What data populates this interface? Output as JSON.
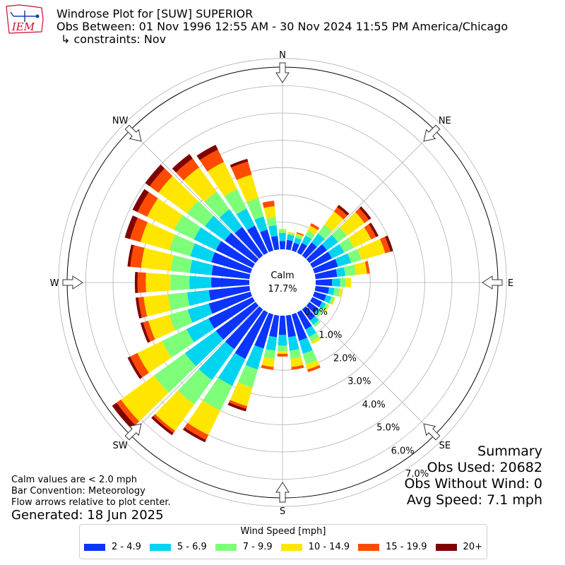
{
  "header": {
    "line1": "Windrose Plot for [SUW] SUPERIOR",
    "line2": "Obs Between: 01 Nov 1996 12:55 AM - 30 Nov 2024 11:55 PM America/Chicago",
    "line3": "↳ constraints: Nov",
    "logo_text": "IEM"
  },
  "notes": {
    "calm_note": "Calm values are < 2.0 mph",
    "bar_convention": "Bar Convention: Meteorology",
    "flow_note": "Flow arrows relative to plot center.",
    "generated": "Generated: 18 Jun 2025"
  },
  "summary": {
    "title": "Summary",
    "obs_used": "Obs Used: 20682",
    "obs_without_wind": "Obs Without Wind: 0",
    "avg_speed": "Avg Speed: 7.1 mph"
  },
  "chart_data": {
    "type": "windrose",
    "title": "Windrose Plot for [SUW] SUPERIOR",
    "calm_label": "Calm",
    "calm_value": "17.7%",
    "calm_percent": 17.7,
    "directions": [
      "N",
      "NE",
      "E",
      "SE",
      "S",
      "SW",
      "W",
      "NW"
    ],
    "radial_ticks": [
      "0.0%",
      "1.0%",
      "2.0%",
      "3.0%",
      "4.0%",
      "5.0%",
      "6.0%",
      "7.0%"
    ],
    "radial_range": [
      0,
      8
    ],
    "legend_title": "Wind Speed [mph]",
    "speed_bins": [
      "2 - 4.9",
      "5 - 6.9",
      "7 - 9.9",
      "10 - 14.9",
      "15 - 19.9",
      "20+"
    ],
    "colors": [
      "#0b34ff",
      "#00d4f0",
      "#7dff7a",
      "#ffe600",
      "#ff4b00",
      "#800000"
    ],
    "sector_width_deg": 10,
    "sector_directions_deg": [
      0,
      10,
      20,
      30,
      40,
      50,
      60,
      70,
      80,
      90,
      100,
      110,
      120,
      130,
      140,
      150,
      160,
      170,
      180,
      190,
      200,
      210,
      220,
      230,
      240,
      250,
      260,
      270,
      280,
      290,
      300,
      310,
      320,
      330,
      340,
      350
    ],
    "cumulative_percent": [
      [
        0.3,
        0.6,
        0.7,
        0.75,
        0.75,
        0.75
      ],
      [
        0.35,
        0.55,
        0.6,
        0.65,
        0.65,
        0.65
      ],
      [
        0.3,
        0.5,
        0.6,
        0.65,
        0.7,
        0.7
      ],
      [
        0.4,
        0.7,
        0.9,
        1.1,
        1.2,
        1.2
      ],
      [
        0.6,
        1.0,
        1.4,
        2.0,
        2.2,
        2.3
      ],
      [
        0.8,
        1.3,
        1.7,
        2.5,
        2.7,
        2.8
      ],
      [
        0.8,
        1.3,
        1.7,
        2.4,
        2.6,
        2.7
      ],
      [
        0.9,
        1.4,
        1.8,
        2.7,
        2.9,
        3.0
      ],
      [
        0.8,
        1.1,
        1.5,
        1.9,
        2.0,
        2.0
      ],
      [
        0.6,
        0.9,
        1.1,
        1.3,
        1.3,
        1.3
      ],
      [
        0.5,
        0.7,
        0.9,
        1.0,
        1.0,
        1.0
      ],
      [
        0.45,
        0.65,
        0.75,
        0.8,
        0.8,
        0.8
      ],
      [
        0.4,
        0.55,
        0.65,
        0.7,
        0.7,
        0.7
      ],
      [
        0.4,
        0.5,
        0.6,
        0.6,
        0.6,
        0.6
      ],
      [
        0.5,
        0.7,
        0.8,
        0.8,
        0.8,
        0.8
      ],
      [
        0.7,
        1.0,
        1.2,
        1.3,
        1.3,
        1.3
      ],
      [
        1.0,
        1.5,
        1.9,
        2.1,
        2.2,
        2.2
      ],
      [
        0.8,
        1.3,
        1.6,
        1.9,
        2.0,
        2.0
      ],
      [
        0.7,
        1.1,
        1.3,
        1.4,
        1.5,
        1.5
      ],
      [
        0.8,
        1.3,
        1.6,
        1.9,
        2.0,
        2.0
      ],
      [
        1.3,
        2.1,
        2.8,
        3.5,
        3.6,
        3.7
      ],
      [
        1.9,
        3.0,
        4.0,
        5.0,
        5.2,
        5.3
      ],
      [
        1.8,
        3.2,
        4.3,
        5.5,
        5.6,
        5.7
      ],
      [
        1.8,
        3.2,
        4.6,
        6.1,
        6.3,
        6.5
      ],
      [
        1.8,
        2.7,
        3.7,
        4.7,
        5.0,
        5.1
      ],
      [
        1.6,
        2.4,
        3.1,
        3.9,
        4.1,
        4.2
      ],
      [
        1.5,
        2.3,
        3.0,
        3.9,
        4.1,
        4.2
      ],
      [
        1.4,
        2.2,
        2.9,
        3.8,
        4.1,
        4.2
      ],
      [
        1.4,
        2.2,
        2.9,
        4.0,
        4.4,
        4.5
      ],
      [
        1.5,
        2.3,
        3.1,
        4.2,
        4.6,
        4.8
      ],
      [
        1.5,
        2.4,
        3.2,
        4.3,
        4.7,
        4.9
      ],
      [
        1.4,
        2.3,
        3.1,
        4.4,
        4.8,
        5.0
      ],
      [
        1.3,
        2.1,
        2.9,
        4.0,
        4.4,
        4.6
      ],
      [
        1.1,
        1.8,
        2.6,
        3.7,
        4.2,
        4.4
      ],
      [
        0.8,
        1.3,
        2.0,
        2.9,
        3.4,
        3.5
      ],
      [
        0.5,
        0.9,
        1.2,
        1.6,
        1.8,
        1.8
      ]
    ]
  }
}
